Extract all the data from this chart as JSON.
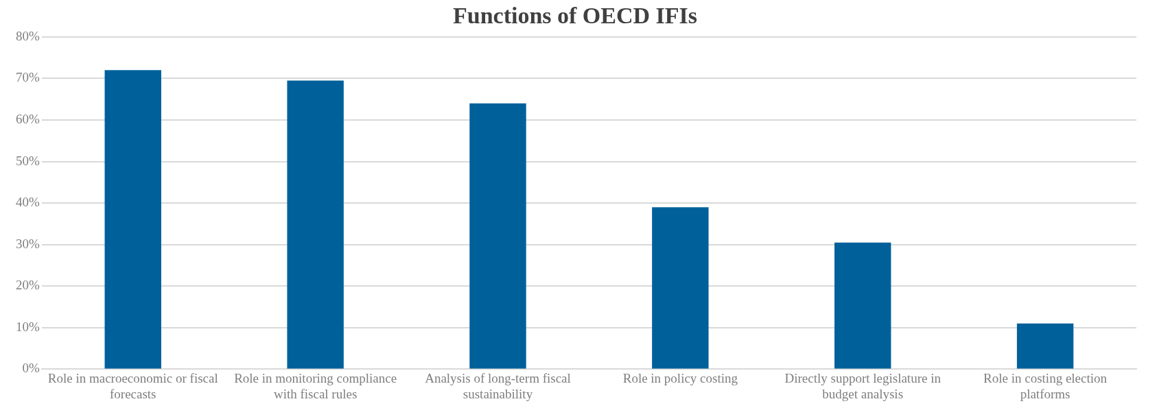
{
  "chart_data": {
    "type": "bar",
    "title": "Functions of OECD IFIs",
    "categories": [
      "Role in macroeconomic or fiscal forecasts",
      "Role in monitoring compliance with fiscal rules",
      "Analysis of long-term fiscal sustainability",
      "Role in policy costing",
      "Directly support legislature in budget analysis",
      "Role in costing election platforms"
    ],
    "values": [
      72,
      69.5,
      64,
      39,
      30.5,
      11
    ],
    "color": "#00609a",
    "ylim": [
      0,
      80
    ],
    "yticks": [
      {
        "value": 0,
        "label": "0%"
      },
      {
        "value": 10,
        "label": "10%"
      },
      {
        "value": 20,
        "label": "20%"
      },
      {
        "value": 30,
        "label": "30%"
      },
      {
        "value": 40,
        "label": "40%"
      },
      {
        "value": 50,
        "label": "50%"
      },
      {
        "value": 60,
        "label": "60%"
      },
      {
        "value": 70,
        "label": "70%"
      },
      {
        "value": 80,
        "label": "80%"
      }
    ],
    "grid": "y"
  }
}
